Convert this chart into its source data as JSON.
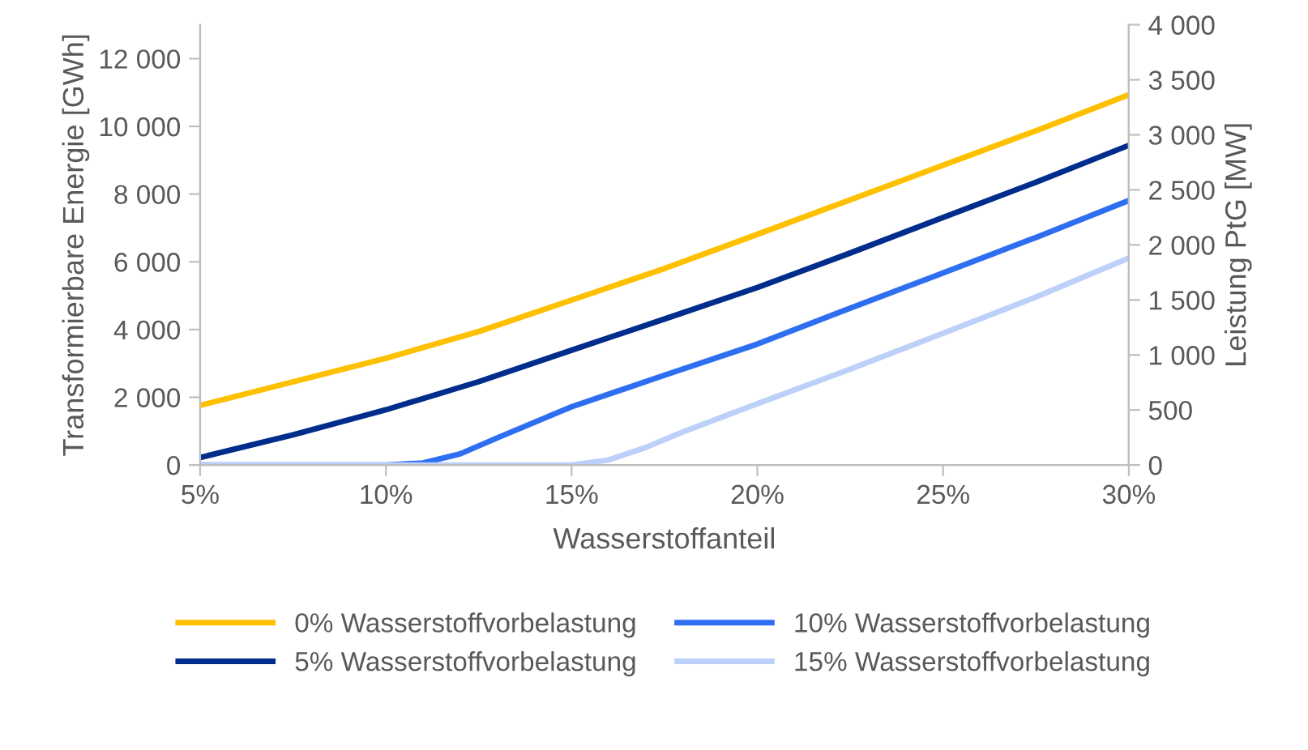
{
  "chart_data": {
    "type": "line",
    "xlabel": "Wasserstoffanteil",
    "ylabel": "Transformierbare Energie [GWh]",
    "y2label": "Leistung PtG [MW]",
    "xlim": [
      5,
      30
    ],
    "xticks": [
      {
        "value": 5,
        "label": "5%"
      },
      {
        "value": 10,
        "label": "10%"
      },
      {
        "value": 15,
        "label": "15%"
      },
      {
        "value": 20,
        "label": "20%"
      },
      {
        "value": 25,
        "label": "25%"
      },
      {
        "value": 30,
        "label": "30%"
      }
    ],
    "ylim": [
      0,
      13000
    ],
    "yticks": [
      0,
      {
        "value": 2000,
        "label": "2 000"
      },
      {
        "value": 4000,
        "label": "4 000"
      },
      {
        "value": 6000,
        "label": "6 000"
      },
      {
        "value": 8000,
        "label": "8 000"
      },
      {
        "value": 10000,
        "label": "10 000"
      },
      {
        "value": 12000,
        "label": "12 000"
      }
    ],
    "y2lim": [
      0,
      4000
    ],
    "y2ticks": [
      0,
      500,
      {
        "value": 1000,
        "label": "1 000"
      },
      {
        "value": 1500,
        "label": "1 500"
      },
      {
        "value": 2000,
        "label": "2 000"
      },
      {
        "value": 2500,
        "label": "2 500"
      },
      {
        "value": 3000,
        "label": "3 000"
      },
      {
        "value": 3500,
        "label": "3 500"
      },
      {
        "value": 4000,
        "label": "4 000"
      }
    ],
    "grid": false,
    "legend": "bottom",
    "marker": "none",
    "line_style": "solid",
    "series": [
      {
        "name": "0% Wasserstoffvorbelastung",
        "color": "#ffc000",
        "x": [
          5,
          10,
          12.5,
          15,
          17.5,
          20,
          22.5,
          25,
          27.5,
          30
        ],
        "values": [
          1760,
          3150,
          3940,
          4870,
          5800,
          6810,
          7830,
          8850,
          9870,
          10930
        ]
      },
      {
        "name": "5% Wasserstoffvorbelastung",
        "color": "#002d8c",
        "x": [
          5,
          7.5,
          10,
          12.5,
          15,
          17.5,
          20,
          22.5,
          25,
          27.5,
          30
        ],
        "values": [
          220,
          890,
          1630,
          2460,
          3390,
          4310,
          5240,
          6260,
          7310,
          8350,
          9440
        ]
      },
      {
        "name": "10% Wasserstoffvorbelastung",
        "color": "#2e6ff2",
        "x": [
          5,
          10,
          11,
          12,
          13,
          15,
          17.5,
          20,
          22.5,
          25,
          27.5,
          30
        ],
        "values": [
          0,
          0,
          60,
          330,
          800,
          1720,
          2650,
          3570,
          4630,
          5670,
          6720,
          7810
        ]
      },
      {
        "name": "15% Wasserstoffvorbelastung",
        "color": "#bcd0fa",
        "x": [
          5,
          15,
          16,
          17,
          18,
          20,
          22.5,
          25,
          27.5,
          30
        ],
        "values": [
          0,
          0,
          150,
          520,
          980,
          1810,
          2830,
          3890,
          4960,
          6110
        ]
      }
    ]
  }
}
